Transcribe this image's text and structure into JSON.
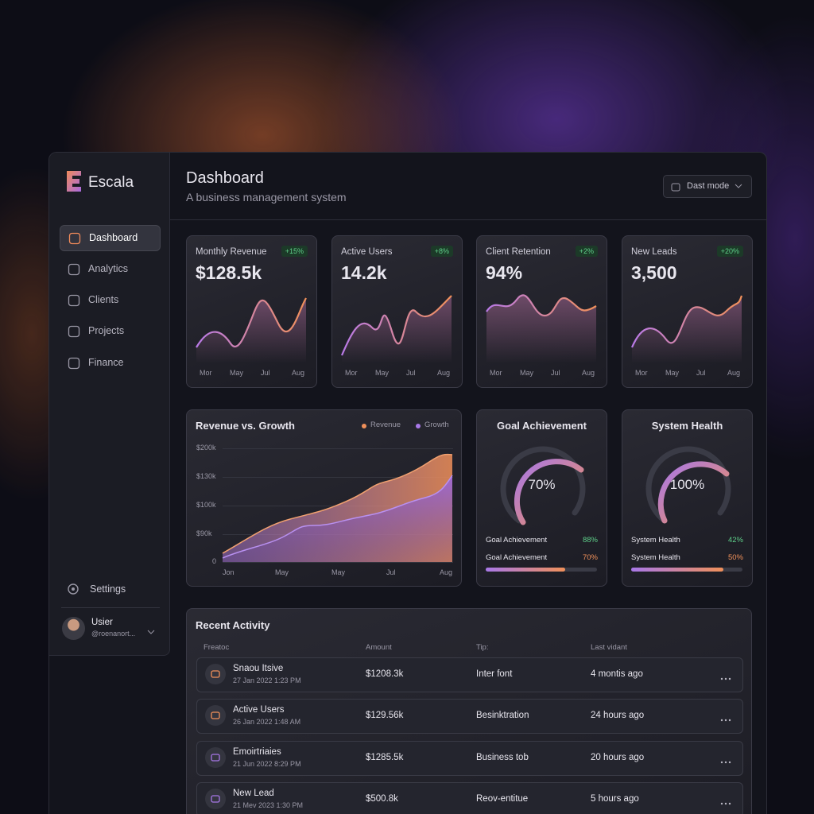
{
  "sidebar": {
    "brand": "Escala",
    "nav": [
      "Dashboard",
      "Analytics",
      "Clients",
      "Projects",
      "Finance"
    ],
    "settings": "Settings",
    "user": {
      "name": "Usier",
      "handle": "@roenanort..."
    }
  },
  "header": {
    "title": "Dashboard",
    "subtitle": "A business management system",
    "mode_button": "Dast mode"
  },
  "kpis": [
    {
      "label": "Monthly Revenue",
      "value": "$128.5k",
      "change": "+15%",
      "months": [
        "Mor",
        "May",
        "Jul",
        "Aug"
      ]
    },
    {
      "label": "Active Users",
      "value": "14.2k",
      "change": "+8%",
      "months": [
        "Mor",
        "May",
        "Jul",
        "Aug"
      ]
    },
    {
      "label": "Client Retention",
      "value": "94%",
      "change": "+2%",
      "months": [
        "Mor",
        "May",
        "Jul",
        "Aug"
      ]
    },
    {
      "label": "New Leads",
      "value": "3,500",
      "change": "+20%",
      "months": [
        "Mor",
        "May",
        "Jul",
        "Aug"
      ]
    }
  ],
  "revenue_chart": {
    "title": "Revenue vs. Growth",
    "legend": [
      "Revenue",
      "Growth"
    ],
    "y_labels": [
      "$200k",
      "$130k",
      "$100k",
      "$90k",
      "0"
    ],
    "x_labels": [
      "Jon",
      "May",
      "May",
      "Jul",
      "Aug"
    ]
  },
  "gauges": [
    {
      "title": "Goal Achievement",
      "center": "70%",
      "rows": [
        {
          "label": "Goal Achievement",
          "value": "88%"
        },
        {
          "label": "Goal Achievement",
          "value": "70%"
        }
      ]
    },
    {
      "title": "System Health",
      "center": "100%",
      "rows": [
        {
          "label": "System Health",
          "value": "42%"
        },
        {
          "label": "System Health",
          "value": "50%"
        }
      ]
    }
  ],
  "activity": {
    "title": "Recent Activity",
    "columns": [
      "Freatoc",
      "Amount",
      "Tip:",
      "Last vidant"
    ],
    "rows": [
      {
        "name": "Snaou Itsive",
        "date": "27 Jan 2022 1:23 PM",
        "amount": "$1208.3k",
        "tip": "Inter font",
        "last": "4 montis ago"
      },
      {
        "name": "Active Users",
        "date": "26 Jan 2022 1:48 AM",
        "amount": "$129.56k",
        "tip": "Besinktration",
        "last": "24 hours ago"
      },
      {
        "name": "Emoirtriaies",
        "date": "21 Jun 2022 8:29 PM",
        "amount": "$1285.5k",
        "tip": "Business tob",
        "last": "20 hours ago"
      },
      {
        "name": "New Lead",
        "date": "21 Mev 2023 1:30 PM",
        "amount": "$500.8k",
        "tip": "Reov-entitue",
        "last": "5 hours ago"
      }
    ]
  }
}
